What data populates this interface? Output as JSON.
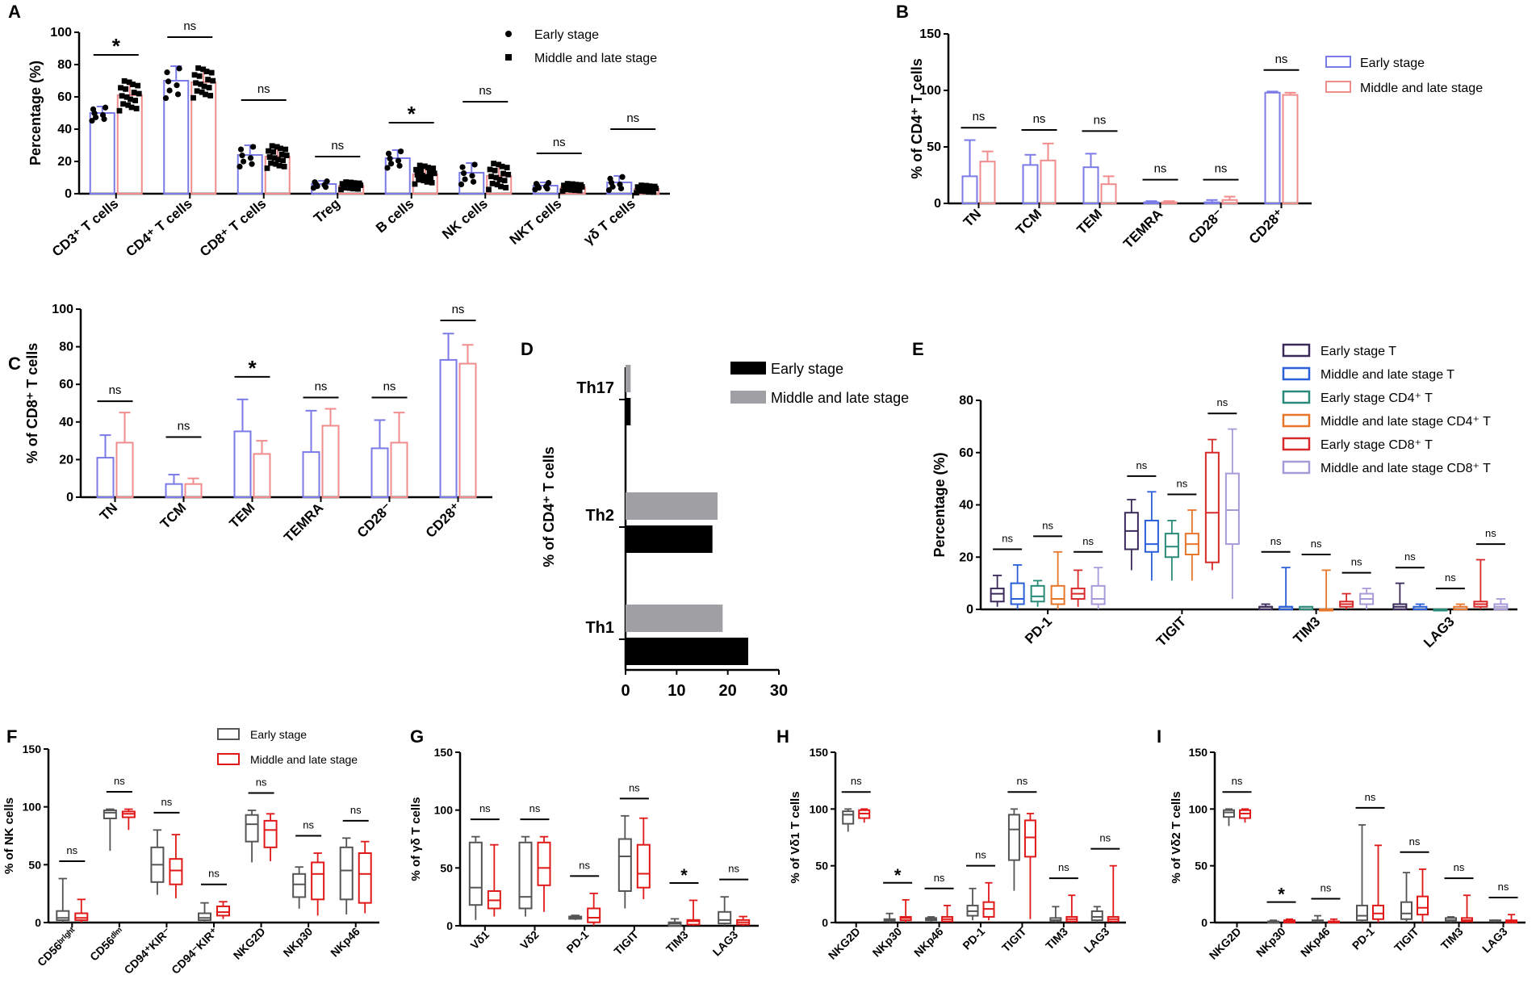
{
  "panel_letters": [
    "A",
    "B",
    "C",
    "D",
    "E",
    "F",
    "G",
    "H",
    "I"
  ],
  "colors": {
    "early": "#7b7be8",
    "late": "#f08c8c",
    "gray": "#a0a0a4",
    "black": "#000000"
  },
  "chart_data": [
    {
      "id": "A",
      "type": "bar",
      "title": "",
      "ylabel": "Percentage  (%)",
      "ylim": [
        0,
        100
      ],
      "yticks": [
        0,
        20,
        40,
        60,
        80,
        100
      ],
      "categories": [
        "CD3⁺ T cells",
        "CD4⁺ T cells",
        "CD8⁺ T cells",
        "Treg",
        "B cells",
        "NK cells",
        "NKT cells",
        "γδ T cells"
      ],
      "series": [
        {
          "name": "Early stage",
          "values": [
            50,
            70,
            24,
            6,
            22,
            13,
            5,
            7
          ],
          "errors": [
            4,
            9,
            6,
            2,
            5,
            6,
            2,
            4
          ]
        },
        {
          "name": "Middle and late stage",
          "values": [
            61,
            69,
            23,
            5,
            12,
            11,
            4,
            3
          ],
          "errors": [
            8,
            8,
            6,
            2,
            5,
            7,
            2,
            2
          ]
        }
      ],
      "significance": [
        "*",
        "ns",
        "ns",
        "ns",
        "*",
        "ns",
        "ns",
        "ns"
      ],
      "legend": [
        "Early stage",
        "Middle and late stage"
      ]
    },
    {
      "id": "B",
      "type": "bar",
      "ylabel": "% of CD4⁺ T cells",
      "ylim": [
        0,
        150
      ],
      "yticks": [
        0,
        50,
        100,
        150
      ],
      "categories": [
        "TN",
        "TCM",
        "TEM",
        "TEMRA",
        "CD28⁻",
        "CD28⁺"
      ],
      "series": [
        {
          "name": "Early stage",
          "values": [
            24,
            34,
            32,
            1,
            1,
            98
          ],
          "errors": [
            32,
            9,
            12,
            1,
            2,
            1
          ]
        },
        {
          "name": "Middle and late stage",
          "values": [
            37,
            38,
            17,
            1,
            3,
            96
          ],
          "errors": [
            9,
            15,
            7,
            1,
            3,
            2
          ]
        }
      ],
      "significance": [
        "ns",
        "ns",
        "ns",
        "ns",
        "ns",
        "ns"
      ],
      "legend": [
        "Early stage",
        "Middle and late stage"
      ]
    },
    {
      "id": "C",
      "type": "bar",
      "ylabel": "% of CD8⁺ T cells",
      "ylim": [
        0,
        100
      ],
      "yticks": [
        0,
        20,
        40,
        60,
        80,
        100
      ],
      "categories": [
        "TN",
        "TCM",
        "TEM",
        "TEMRA",
        "CD28⁻",
        "CD28⁺"
      ],
      "series": [
        {
          "name": "Early stage",
          "values": [
            21,
            7,
            35,
            24,
            26,
            73
          ],
          "errors": [
            12,
            5,
            17,
            22,
            15,
            14
          ]
        },
        {
          "name": "Middle and late stage",
          "values": [
            29,
            7,
            23,
            38,
            29,
            71
          ],
          "errors": [
            16,
            3,
            7,
            9,
            16,
            10
          ]
        }
      ],
      "significance": [
        "ns",
        "ns",
        "*",
        "ns",
        "ns",
        "ns"
      ]
    },
    {
      "id": "D",
      "type": "bar",
      "orientation": "horizontal",
      "ylabel": "% of CD4⁺ T cells",
      "xlim": [
        0,
        30
      ],
      "xticks": [
        0,
        10,
        20,
        30
      ],
      "categories": [
        "Th17",
        "Th2",
        "Th1"
      ],
      "series": [
        {
          "name": "Early stage",
          "values": [
            1,
            17,
            24
          ]
        },
        {
          "name": "Middle and late stage",
          "values": [
            1,
            18,
            19
          ]
        }
      ],
      "legend": [
        "Early stage",
        "Middle and late stage"
      ]
    },
    {
      "id": "E",
      "type": "box",
      "ylabel": "Percentage (%)",
      "ylim": [
        0,
        80
      ],
      "yticks": [
        0,
        20,
        40,
        60,
        80
      ],
      "categories": [
        "PD-1",
        "TIGIT",
        "TIM3",
        "LAG3"
      ],
      "series_names": [
        "Early stage T",
        "Middle and late stage T",
        "Early stage CD4⁺ T",
        "Middle and late stage CD4⁺ T",
        "Early stage CD8⁺ T",
        "Middle and late stage CD8⁺ T"
      ],
      "series_colors": [
        "#3a2a5a",
        "#2a5fd8",
        "#2a8a7a",
        "#e8762a",
        "#d82a2a",
        "#a89ad8"
      ],
      "boxes": [
        [
          [
            1,
            3,
            6,
            8,
            13
          ],
          [
            0,
            2,
            4,
            10,
            17
          ],
          [
            1,
            3,
            5,
            9,
            11
          ],
          [
            0,
            2,
            4,
            9,
            22
          ],
          [
            1,
            4,
            6,
            8,
            15
          ],
          [
            0,
            2,
            4,
            9,
            16
          ]
        ],
        [
          [
            15,
            23,
            30,
            37,
            42
          ],
          [
            11,
            22,
            25,
            34,
            45
          ],
          [
            11,
            20,
            24,
            29,
            34
          ],
          [
            11,
            21,
            25,
            29,
            38
          ],
          [
            15,
            18,
            37,
            60,
            65
          ],
          [
            4,
            25,
            38,
            52,
            69
          ]
        ],
        [
          [
            0,
            0,
            1,
            1,
            2
          ],
          [
            0,
            0,
            1,
            1,
            16
          ],
          [
            0,
            0,
            0,
            1,
            1
          ],
          [
            0,
            0,
            0,
            0,
            15
          ],
          [
            0,
            1,
            2,
            3,
            6
          ],
          [
            0,
            2,
            4,
            6,
            8
          ]
        ],
        [
          [
            0,
            0,
            1,
            2,
            10
          ],
          [
            0,
            0,
            0,
            1,
            2
          ],
          [
            0,
            0,
            0,
            0,
            0
          ],
          [
            0,
            0,
            0,
            1,
            2
          ],
          [
            0,
            1,
            2,
            3,
            19
          ],
          [
            0,
            0,
            1,
            2,
            4
          ]
        ]
      ],
      "significance": [
        [
          "ns",
          "ns",
          "ns"
        ],
        [
          "ns",
          "ns",
          "ns"
        ],
        [
          "ns",
          "ns",
          "ns"
        ],
        [
          "ns",
          "ns",
          "ns"
        ]
      ]
    },
    {
      "id": "F",
      "type": "box",
      "ylabel": "% of NK cells",
      "ylim": [
        0,
        150
      ],
      "yticks": [
        0,
        50,
        100,
        150
      ],
      "categories": [
        "CD56ᵇʳⁱᵍʰᵗ",
        "CD56ᵈⁱᵐ",
        "CD94⁺KIR⁻",
        "CD94⁻KIR⁺",
        "NKG2D",
        "NKp30",
        "NKp46"
      ],
      "series_names": [
        "Early stage",
        "Middle and late stage"
      ],
      "boxes": [
        [
          [
            0,
            2,
            4,
            10,
            38
          ],
          [
            0,
            2,
            4,
            8,
            20
          ]
        ],
        [
          [
            62,
            90,
            95,
            97,
            98
          ],
          [
            80,
            91,
            94,
            96,
            98
          ]
        ],
        [
          [
            24,
            35,
            50,
            65,
            80
          ],
          [
            21,
            33,
            45,
            55,
            76
          ]
        ],
        [
          [
            0,
            2,
            4,
            8,
            17
          ],
          [
            3,
            6,
            9,
            14,
            18
          ]
        ],
        [
          [
            52,
            70,
            85,
            93,
            97
          ],
          [
            53,
            65,
            80,
            88,
            94
          ]
        ],
        [
          [
            12,
            22,
            33,
            42,
            48
          ],
          [
            6,
            20,
            42,
            52,
            60
          ]
        ],
        [
          [
            7,
            20,
            45,
            65,
            73
          ],
          [
            8,
            17,
            42,
            60,
            70
          ]
        ]
      ],
      "significance": [
        "ns",
        "ns",
        "ns",
        "ns",
        "ns",
        "ns",
        "ns"
      ],
      "legend": [
        "Early stage",
        "Middle and late stage"
      ]
    },
    {
      "id": "G",
      "type": "box",
      "ylabel": "% of γδ T cells",
      "ylim": [
        0,
        150
      ],
      "yticks": [
        0,
        50,
        100,
        150
      ],
      "categories": [
        "Vδ1",
        "Vδ2",
        "PD-1",
        "TIGIT",
        "TIM3",
        "LAG3"
      ],
      "series_names": [
        "Early stage",
        "Middle and late stage"
      ],
      "boxes": [
        [
          [
            5,
            18,
            33,
            72,
            77
          ],
          [
            8,
            15,
            22,
            30,
            70
          ]
        ],
        [
          [
            8,
            15,
            25,
            72,
            77
          ],
          [
            12,
            35,
            50,
            72,
            77
          ]
        ],
        [
          [
            5,
            6,
            7,
            8,
            9
          ],
          [
            0,
            3,
            7,
            15,
            28
          ]
        ],
        [
          [
            15,
            30,
            60,
            75,
            95
          ],
          [
            23,
            33,
            45,
            70,
            93
          ]
        ],
        [
          [
            0,
            0,
            2,
            3,
            6
          ],
          [
            0,
            1,
            4,
            5,
            22
          ]
        ],
        [
          [
            0,
            2,
            5,
            12,
            25
          ],
          [
            0,
            1,
            3,
            5,
            8
          ]
        ]
      ],
      "significance": [
        "ns",
        "ns",
        "ns",
        "ns",
        "*",
        "ns"
      ]
    },
    {
      "id": "H",
      "type": "box",
      "ylabel": "% of Vδ1 T cells",
      "ylim": [
        0,
        150
      ],
      "yticks": [
        0,
        50,
        100,
        150
      ],
      "categories": [
        "NKG2D",
        "NKp30",
        "NKp46",
        "PD-1",
        "TIGIT",
        "TIM3",
        "LAG3"
      ],
      "series_names": [
        "Early stage",
        "Middle and late stage"
      ],
      "boxes": [
        [
          [
            80,
            87,
            95,
            98,
            100
          ],
          [
            88,
            92,
            96,
            99,
            100
          ]
        ],
        [
          [
            0,
            1,
            2,
            3,
            8
          ],
          [
            0,
            2,
            4,
            5,
            20
          ]
        ],
        [
          [
            1,
            2,
            3,
            4,
            5
          ],
          [
            0,
            1,
            3,
            5,
            15
          ]
        ],
        [
          [
            2,
            6,
            10,
            15,
            30
          ],
          [
            2,
            5,
            12,
            18,
            35
          ]
        ],
        [
          [
            28,
            55,
            82,
            95,
            100
          ],
          [
            3,
            58,
            75,
            90,
            96
          ]
        ],
        [
          [
            0,
            1,
            2,
            4,
            14
          ],
          [
            0,
            1,
            3,
            5,
            24
          ]
        ],
        [
          [
            0,
            2,
            5,
            10,
            14
          ],
          [
            0,
            1,
            3,
            5,
            50
          ]
        ]
      ],
      "significance": [
        "ns",
        "*",
        "ns",
        "ns",
        "ns",
        "ns",
        "ns"
      ]
    },
    {
      "id": "I",
      "type": "box",
      "ylabel": "% of Vδ2 T cells",
      "ylim": [
        0,
        150
      ],
      "yticks": [
        0,
        50,
        100,
        150
      ],
      "categories": [
        "NKG2D",
        "NKp30",
        "NKp46",
        "PD-1",
        "TIGIT",
        "TIM3",
        "LAG3"
      ],
      "series_names": [
        "Early stage",
        "Middle and late stage"
      ],
      "boxes": [
        [
          [
            85,
            93,
            97,
            99,
            100
          ],
          [
            88,
            92,
            96,
            99,
            100
          ]
        ],
        [
          [
            0,
            0,
            1,
            1,
            2
          ],
          [
            0,
            0,
            1,
            2,
            3
          ]
        ],
        [
          [
            0,
            1,
            1,
            2,
            6
          ],
          [
            0,
            0,
            1,
            1,
            3
          ]
        ],
        [
          [
            0,
            2,
            6,
            15,
            86
          ],
          [
            0,
            3,
            8,
            15,
            68
          ]
        ],
        [
          [
            0,
            3,
            8,
            18,
            44
          ],
          [
            0,
            7,
            13,
            23,
            47
          ]
        ],
        [
          [
            0,
            1,
            2,
            4,
            5
          ],
          [
            0,
            1,
            2,
            4,
            24
          ]
        ],
        [
          [
            0,
            1,
            1,
            2,
            2
          ],
          [
            0,
            0,
            1,
            2,
            7
          ]
        ]
      ],
      "significance": [
        "ns",
        "*",
        "ns",
        "ns",
        "ns",
        "ns",
        "ns"
      ]
    }
  ]
}
